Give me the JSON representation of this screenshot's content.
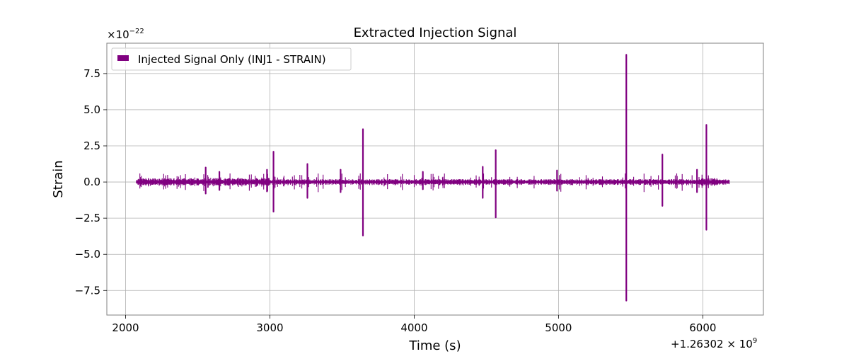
{
  "colors": {
    "signal": "#800080",
    "grid": "#b0b0b0",
    "frame": "#808080"
  },
  "chart_data": {
    "type": "line",
    "title": "Extracted Injection Signal",
    "xlabel": "Time (s)",
    "ylabel": "Strain",
    "y_scale_label": "×10",
    "y_scale_exponent": "−22",
    "x_offset_label": "+1.26302",
    "x_offset_exponent": "9",
    "xlim": [
      1870,
      6420
    ],
    "ylim": [
      -9.2,
      9.6
    ],
    "xticks": [
      2000,
      3000,
      4000,
      5000,
      6000
    ],
    "xtick_labels": [
      "2000",
      "3000",
      "4000",
      "5000",
      "6000"
    ],
    "yticks": [
      -7.5,
      -5.0,
      -2.5,
      0.0,
      2.5,
      5.0,
      7.5
    ],
    "ytick_labels": [
      "−7.5",
      "−5.0",
      "−2.5",
      "0.0",
      "2.5",
      "5.0",
      "7.5"
    ],
    "grid": true,
    "legend": {
      "position": "top-left",
      "entries": [
        "Injected Signal Only (INJ1 - STRAIN)"
      ]
    },
    "series": [
      {
        "name": "Injected Signal Only (INJ1 - STRAIN)",
        "x_start": 2075,
        "x_end": 6185,
        "baseline_amplitude": 0.2,
        "spikes": [
          {
            "x": 2555,
            "max": 1.0,
            "min": -0.8
          },
          {
            "x": 2650,
            "max": 0.7,
            "min": -0.55
          },
          {
            "x": 2980,
            "max": 0.85,
            "min": -0.65
          },
          {
            "x": 3025,
            "max": 2.1,
            "min": -2.05
          },
          {
            "x": 3260,
            "max": 1.25,
            "min": -1.1
          },
          {
            "x": 3490,
            "max": 0.85,
            "min": -0.7
          },
          {
            "x": 3645,
            "max": 3.65,
            "min": -3.7
          },
          {
            "x": 4060,
            "max": 0.7,
            "min": -0.5
          },
          {
            "x": 4475,
            "max": 1.05,
            "min": -1.1
          },
          {
            "x": 4565,
            "max": 2.2,
            "min": -2.45
          },
          {
            "x": 4990,
            "max": 0.8,
            "min": -0.6
          },
          {
            "x": 5470,
            "max": 8.8,
            "min": -8.2
          },
          {
            "x": 5720,
            "max": 1.9,
            "min": -1.65
          },
          {
            "x": 5960,
            "max": 0.85,
            "min": -0.7
          },
          {
            "x": 6025,
            "max": 3.95,
            "min": -3.3
          }
        ]
      }
    ]
  }
}
